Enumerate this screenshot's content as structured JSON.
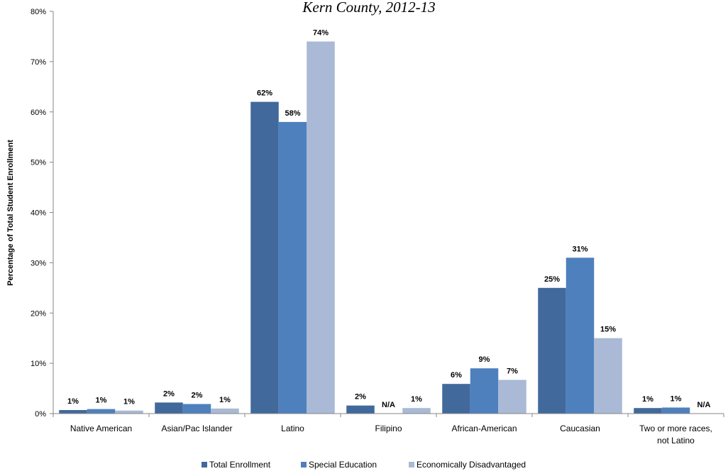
{
  "chart_data": {
    "type": "bar",
    "title": "Kern County, 2012-13",
    "ylabel": "Percentage of Total Student Enrollment",
    "xlabel": "",
    "ylim": [
      0,
      80
    ],
    "yticks": [
      0,
      10,
      20,
      30,
      40,
      50,
      60,
      70,
      80
    ],
    "ytick_labels": [
      "0%",
      "10%",
      "20%",
      "30%",
      "40%",
      "50%",
      "60%",
      "70%",
      "80%"
    ],
    "categories": [
      "Native American",
      "Asian/Pac Islander",
      "Latino",
      "Filipino",
      "African-American",
      "Caucasian",
      "Two or more races, not Latino"
    ],
    "category_lines": [
      [
        "Native American"
      ],
      [
        "Asian/Pac Islander"
      ],
      [
        "Latino"
      ],
      [
        "Filipino"
      ],
      [
        "African-American"
      ],
      [
        "Caucasian"
      ],
      [
        "Two or more races,",
        "not Latino"
      ]
    ],
    "series": [
      {
        "name": "Total Enrollment",
        "color": "#41699b",
        "values": [
          0.7,
          2.2,
          62,
          1.6,
          5.9,
          25,
          1.1
        ],
        "labels": [
          "1%",
          "2%",
          "62%",
          "2%",
          "6%",
          "25%",
          "1%"
        ]
      },
      {
        "name": "Special Education",
        "color": "#4e80bd",
        "values": [
          0.9,
          1.9,
          58,
          null,
          9,
          31,
          1.2
        ],
        "labels": [
          "1%",
          "2%",
          "58%",
          "N/A",
          "9%",
          "31%",
          "1%"
        ]
      },
      {
        "name": "Economically Disadvantaged",
        "color": "#a9b9d6",
        "values": [
          0.6,
          1.0,
          74,
          1.1,
          6.7,
          15,
          null
        ],
        "labels": [
          "1%",
          "1%",
          "74%",
          "1%",
          "7%",
          "15%",
          "N/A"
        ]
      }
    ],
    "grid": false,
    "legend_position": "bottom"
  }
}
